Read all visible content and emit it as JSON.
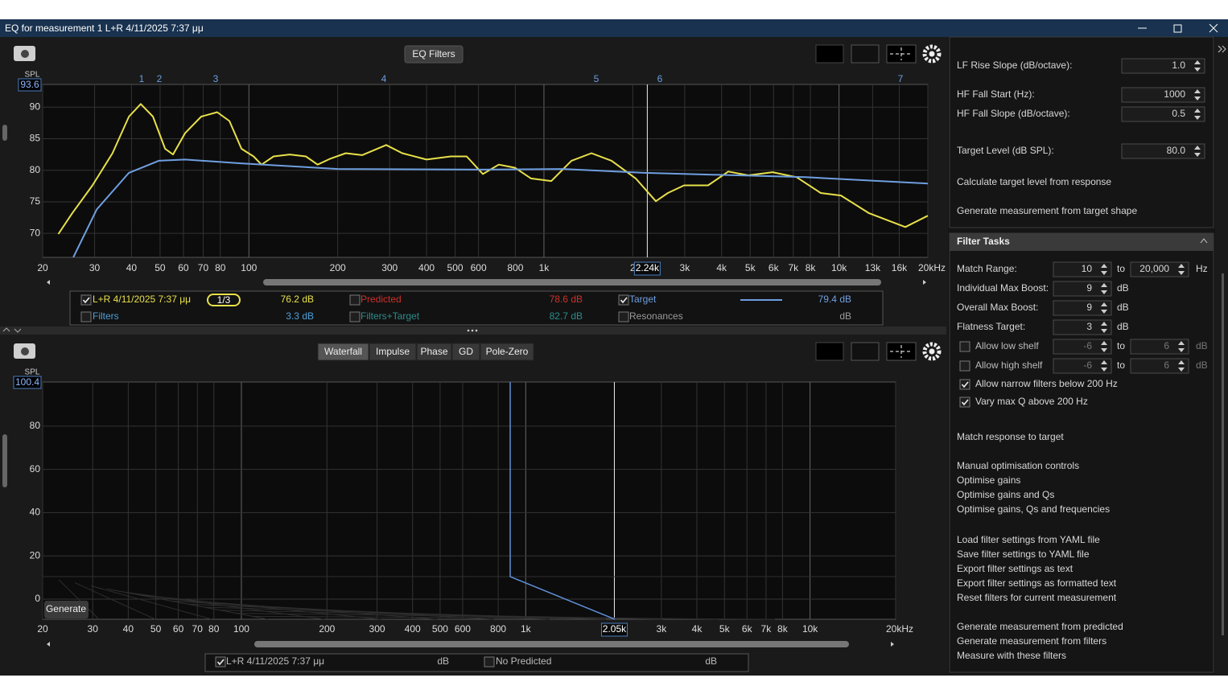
{
  "window": {
    "title": "EQ for measurement 1 L+R 4/11/2025 7:37 μμ"
  },
  "top_panel": {
    "button": "EQ Filters",
    "graph": {
      "type": "line",
      "y_label": "SPL",
      "y_top_label": "93.6",
      "xlog": true,
      "grid": true,
      "xlim": [
        20,
        20000
      ],
      "ylim": [
        66.2,
        93.6
      ],
      "yticks": [
        70,
        75,
        80,
        85,
        90
      ],
      "xticks": [
        20,
        30,
        40,
        50,
        60,
        70,
        80,
        100,
        200,
        300,
        400,
        500,
        600,
        800,
        {
          "value": 1000,
          "label": "1k"
        },
        {
          "value": 2000,
          "label": "2"
        },
        {
          "value": 3000,
          "label": "3k"
        },
        {
          "value": 4000,
          "label": "4k"
        },
        {
          "value": 5000,
          "label": "5k"
        },
        {
          "value": 6000,
          "label": "6k"
        },
        {
          "value": 7000,
          "label": "7k"
        },
        {
          "value": 8000,
          "label": "8k"
        },
        {
          "value": 10000,
          "label": "10k"
        },
        {
          "value": 13000,
          "label": "13k"
        },
        {
          "value": 16000,
          "label": "16k"
        },
        {
          "value": 20000,
          "label": "20kHz"
        }
      ],
      "cursor": {
        "value": 2240,
        "label": "2.24k"
      },
      "filter_markers": [
        "1",
        "2",
        "3",
        "4",
        "5",
        "6",
        "7"
      ],
      "series": [
        {
          "color": "#e8e04a",
          "x": [
            22.6,
            25.2,
            29.5,
            34.5,
            39.2,
            43,
            47.3,
            52,
            55.3,
            60.8,
            68.9,
            78.1,
            85.9,
            94.4,
            103.7,
            110.4,
            121.3,
            137.5,
            156,
            171,
            188,
            213,
            242,
            292,
            331,
            400,
            483,
            547,
            621,
            703,
            798,
            904,
            1059,
            1239,
            1449,
            1695,
            2047,
            2395,
            2630,
            2985,
            3600,
            4215,
            4931,
            5957,
            7180,
            8670,
            10150,
            12640,
            16770,
            20000
          ],
          "values": [
            69.9,
            73.2,
            77.6,
            82.7,
            88.5,
            90.5,
            88.5,
            83.4,
            82.5,
            85.9,
            88.5,
            89.2,
            87.8,
            83.4,
            82.2,
            80.9,
            82.2,
            82.5,
            82.2,
            80.9,
            81.8,
            82.7,
            82.4,
            84,
            82.7,
            81.7,
            82.2,
            82.2,
            79.4,
            80.9,
            80.4,
            78.7,
            78.3,
            81.5,
            82.7,
            81.5,
            78.7,
            75.1,
            76.4,
            77.6,
            77.6,
            79.8,
            79.2,
            79.7,
            78.9,
            76.4,
            76,
            73.2,
            71,
            72.8
          ]
        },
        {
          "color": "#6f9fe0",
          "x": [
            25.4,
            30.5,
            39.2,
            49.5,
            60.8,
            94,
            200,
            621,
            1165,
            2180,
            7700,
            20000
          ],
          "values": [
            66.2,
            73.8,
            79.6,
            81.5,
            81.7,
            81.1,
            80.2,
            80.1,
            80.2,
            79.6,
            78.9,
            77.9
          ]
        }
      ]
    },
    "legend": [
      {
        "label": "L+R 4/11/2025 7:37 μμ",
        "value": "76.2 dB",
        "checked": true,
        "color": "#e8e04a",
        "smoothing": "1/3"
      },
      {
        "label": "Predicted",
        "value": "78.6 dB",
        "checked": false,
        "color": "#d0302a"
      },
      {
        "label": "Target",
        "value": "79.4 dB",
        "checked": true,
        "color": "#6f9fe0"
      },
      {
        "label": "Filters",
        "value": "3.3 dB",
        "checked": false,
        "color": "#4f9fd8"
      },
      {
        "label": "Filters+Target",
        "value": "82.7 dB",
        "checked": false,
        "color": "#2e8c8c"
      },
      {
        "label": "Resonances",
        "value": "dB",
        "checked": false,
        "color": "#9a9a9a"
      }
    ]
  },
  "bottom_panel": {
    "tabs": [
      "Waterfall",
      "Impulse",
      "Phase",
      "GD",
      "Pole-Zero"
    ],
    "active_tab": 0,
    "graph": {
      "y_label": "SPL",
      "y_top_label": "100.4",
      "xlog": true,
      "grid": true,
      "xlim": [
        20,
        20000
      ],
      "ylim": [
        -9.3,
        100.4
      ],
      "yticks": [
        0,
        20,
        40,
        60,
        80
      ],
      "xticks": [
        20,
        30,
        40,
        50,
        60,
        70,
        80,
        100,
        200,
        300,
        400,
        500,
        600,
        800,
        {
          "value": 1000,
          "label": "1k"
        },
        {
          "value": 3000,
          "label": "3k"
        },
        {
          "value": 4000,
          "label": "4k"
        },
        {
          "value": 5000,
          "label": "5k"
        },
        {
          "value": 6000,
          "label": "6k"
        },
        {
          "value": 7000,
          "label": "7k"
        },
        {
          "value": 8000,
          "label": "8k"
        },
        {
          "value": 10000,
          "label": "10k"
        },
        {
          "value": 20000,
          "label": "20kHz"
        }
      ],
      "cursor": {
        "value": 2050,
        "label": "2.05k"
      },
      "button": "Generate"
    },
    "legend": [
      {
        "label": "L+R 4/11/2025 7:37 μμ",
        "value": "dB",
        "checked": true
      },
      {
        "label": "No Predicted",
        "value": "dB",
        "checked": false
      }
    ]
  },
  "side_panel": {
    "target_settings": [
      {
        "label": "LF Rise Slope (dB/octave):",
        "value": "1.0"
      },
      {
        "label": "HF Fall Start (Hz):",
        "value": "1000"
      },
      {
        "label": "HF Fall Slope (dB/octave):",
        "value": "0.5"
      },
      {
        "label": "Target Level (dB SPL):",
        "value": "80.0"
      }
    ],
    "target_actions": [
      "Calculate target level from response",
      "Generate measurement from target shape"
    ],
    "filter_tasks": {
      "title": "Filter Tasks",
      "rows": [
        {
          "label": "Match Range:",
          "from": "10",
          "to_word": "to",
          "to": "20,000",
          "unit": "Hz"
        },
        {
          "label": "Individual Max Boost:",
          "from": "9",
          "unit": "dB"
        },
        {
          "label": "Overall Max Boost:",
          "from": "9",
          "unit": "dB"
        },
        {
          "label": "Flatness Target:",
          "from": "3",
          "unit": "dB"
        },
        {
          "label": "Allow low shelf",
          "checked": false,
          "from": "-6",
          "to_word": "to",
          "to": "6",
          "unit": "dB"
        },
        {
          "label": "Allow high shelf",
          "checked": false,
          "from": "-6",
          "to_word": "to",
          "to": "6",
          "unit": "dB"
        }
      ],
      "checkboxes": [
        {
          "label": "Allow narrow filters below 200 Hz",
          "checked": true
        },
        {
          "label": "Vary max Q above 200 Hz",
          "checked": true
        }
      ],
      "action_groups": [
        [
          "Match response to target"
        ],
        [
          "Manual optimisation controls",
          "Optimise gains",
          "Optimise gains and Qs",
          "Optimise gains, Qs and frequencies"
        ],
        [
          "Load filter settings from YAML file",
          "Save filter settings to YAML file",
          "Export filter settings as text",
          "Export filter settings as formatted text",
          "Reset filters for current measurement"
        ],
        [
          "Generate measurement from predicted",
          "Generate measurement from filters",
          "Measure with these filters"
        ]
      ]
    }
  }
}
